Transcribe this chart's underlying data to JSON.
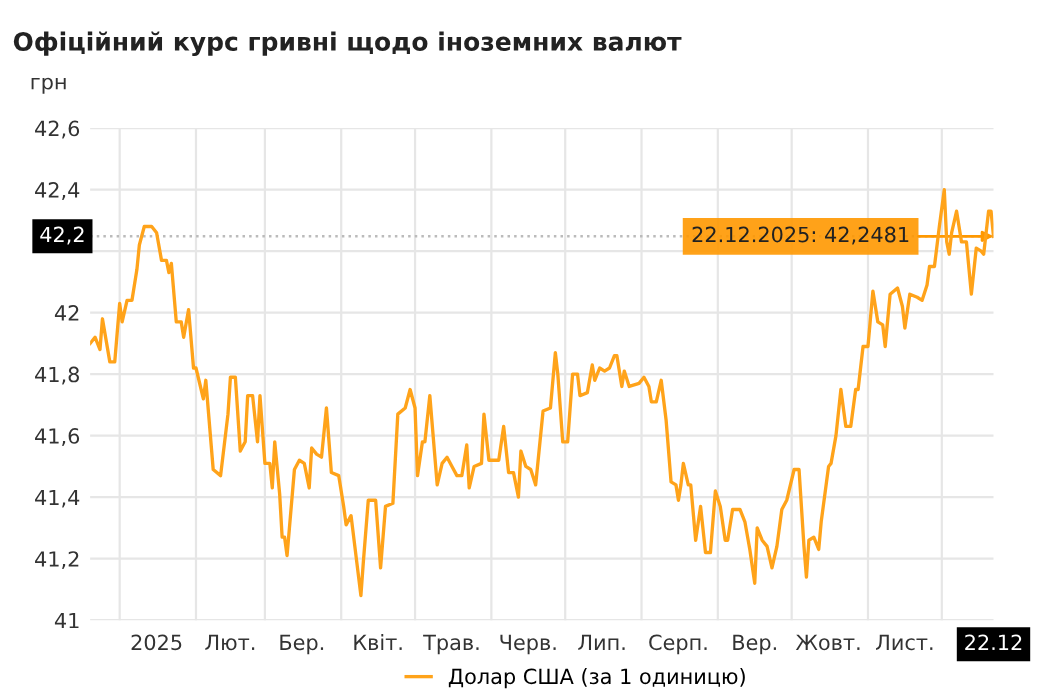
{
  "chart_data": {
    "type": "line",
    "title": "Офіційний курс гривні щодо іноземних валют",
    "ylabel": "грн",
    "x": [
      "2024-12-20",
      "2024-12-22",
      "2024-12-24",
      "2024-12-25",
      "2024-12-28",
      "2024-12-30",
      "2025-01-01",
      "2025-01-02",
      "2025-01-04",
      "2025-01-06",
      "2025-01-08",
      "2025-01-09",
      "2025-01-11",
      "2025-01-14",
      "2025-01-16",
      "2025-01-18",
      "2025-01-20",
      "2025-01-21",
      "2025-01-22",
      "2025-01-24",
      "2025-01-26",
      "2025-01-27",
      "2025-01-29",
      "2025-01-31",
      "2025-02-01",
      "2025-02-04",
      "2025-02-05",
      "2025-02-08",
      "2025-02-11",
      "2025-02-14",
      "2025-02-15",
      "2025-02-17",
      "2025-02-19",
      "2025-02-21",
      "2025-02-22",
      "2025-02-24",
      "2025-02-26",
      "2025-02-27",
      "2025-03-01",
      "2025-03-03",
      "2025-03-04",
      "2025-03-05",
      "2025-03-07",
      "2025-03-08",
      "2025-03-09",
      "2025-03-10",
      "2025-03-13",
      "2025-03-15",
      "2025-03-17",
      "2025-03-19",
      "2025-03-20",
      "2025-03-22",
      "2025-03-24",
      "2025-03-26",
      "2025-03-28",
      "2025-03-31",
      "2025-04-02",
      "2025-04-03",
      "2025-04-05",
      "2025-04-09",
      "2025-04-10",
      "2025-04-12",
      "2025-04-15",
      "2025-04-17",
      "2025-04-19",
      "2025-04-22",
      "2025-04-24",
      "2025-04-27",
      "2025-04-29",
      "2025-05-01",
      "2025-05-02",
      "2025-05-04",
      "2025-05-05",
      "2025-05-07",
      "2025-05-10",
      "2025-05-12",
      "2025-05-14",
      "2025-05-16",
      "2025-05-18",
      "2025-05-20",
      "2025-05-22",
      "2025-05-23",
      "2025-05-25",
      "2025-05-28",
      "2025-05-29",
      "2025-05-31",
      "2025-06-04",
      "2025-06-06",
      "2025-06-08",
      "2025-06-10",
      "2025-06-12",
      "2025-06-13",
      "2025-06-15",
      "2025-06-17",
      "2025-06-19",
      "2025-06-20",
      "2025-06-22",
      "2025-06-25",
      "2025-06-27",
      "2025-06-28",
      "2025-06-30",
      "2025-07-02",
      "2025-07-04",
      "2025-07-06",
      "2025-07-07",
      "2025-07-10",
      "2025-07-12",
      "2025-07-13",
      "2025-07-15",
      "2025-07-17",
      "2025-07-19",
      "2025-07-21",
      "2025-07-22",
      "2025-07-24",
      "2025-07-25",
      "2025-07-27",
      "2025-07-31",
      "2025-08-02",
      "2025-08-04",
      "2025-08-05",
      "2025-08-07",
      "2025-08-09",
      "2025-08-11",
      "2025-08-13",
      "2025-08-15",
      "2025-08-16",
      "2025-08-17",
      "2025-08-18",
      "2025-08-20",
      "2025-08-21",
      "2025-08-23",
      "2025-08-25",
      "2025-08-27",
      "2025-08-29",
      "2025-08-31",
      "2025-09-02",
      "2025-09-04",
      "2025-09-05",
      "2025-09-07",
      "2025-09-10",
      "2025-09-12",
      "2025-09-14",
      "2025-09-16",
      "2025-09-17",
      "2025-09-19",
      "2025-09-21",
      "2025-09-23",
      "2025-09-25",
      "2025-09-27",
      "2025-09-29",
      "2025-10-02",
      "2025-10-04",
      "2025-10-06",
      "2025-10-07",
      "2025-10-08",
      "2025-10-10",
      "2025-10-12",
      "2025-10-13",
      "2025-10-16",
      "2025-10-17",
      "2025-10-19",
      "2025-10-21",
      "2025-10-23",
      "2025-10-25",
      "2025-10-27",
      "2025-10-28",
      "2025-10-30",
      "2025-11-01",
      "2025-11-03",
      "2025-11-05",
      "2025-11-07",
      "2025-11-08",
      "2025-11-10",
      "2025-11-13",
      "2025-11-15",
      "2025-11-16",
      "2025-11-18",
      "2025-11-21",
      "2025-11-23",
      "2025-11-25",
      "2025-11-26",
      "2025-11-28",
      "2025-11-30",
      "2025-12-02",
      "2025-12-03",
      "2025-12-04",
      "2025-12-05",
      "2025-12-07",
      "2025-12-09",
      "2025-12-11",
      "2025-12-13",
      "2025-12-15",
      "2025-12-17",
      "2025-12-18",
      "2025-12-20",
      "2025-12-21",
      "2025-12-22"
    ],
    "series": [
      {
        "name": "Долар США (за 1 одиницю)",
        "color": "#ffa31a",
        "values": [
          41.9,
          41.92,
          41.88,
          41.98,
          41.84,
          41.84,
          42.03,
          41.97,
          42.04,
          42.04,
          42.14,
          42.22,
          42.28,
          42.28,
          42.26,
          42.17,
          42.17,
          42.13,
          42.16,
          41.97,
          41.97,
          41.92,
          42.01,
          41.82,
          41.82,
          41.72,
          41.78,
          41.49,
          41.47,
          41.67,
          41.79,
          41.79,
          41.55,
          41.58,
          41.73,
          41.73,
          41.58,
          41.73,
          41.51,
          41.51,
          41.43,
          41.58,
          41.41,
          41.27,
          41.27,
          41.21,
          41.49,
          41.52,
          41.51,
          41.43,
          41.56,
          41.54,
          41.53,
          41.69,
          41.48,
          41.47,
          41.37,
          41.31,
          41.34,
          41.08,
          41.19,
          41.39,
          41.39,
          41.17,
          41.37,
          41.38,
          41.67,
          41.69,
          41.75,
          41.69,
          41.47,
          41.58,
          41.58,
          41.73,
          41.44,
          41.51,
          41.53,
          41.5,
          41.47,
          41.47,
          41.57,
          41.43,
          41.5,
          41.51,
          41.67,
          41.52,
          41.52,
          41.63,
          41.48,
          41.48,
          41.4,
          41.55,
          41.5,
          41.49,
          41.44,
          41.52,
          41.68,
          41.69,
          41.87,
          41.8,
          41.58,
          41.58,
          41.8,
          41.8,
          41.73,
          41.74,
          41.83,
          41.78,
          41.82,
          41.81,
          41.82,
          41.86,
          41.86,
          41.76,
          41.81,
          41.76,
          41.77,
          41.79,
          41.76,
          41.71,
          41.71,
          41.78,
          41.65,
          41.45,
          41.44,
          41.39,
          41.44,
          41.51,
          41.44,
          41.44,
          41.26,
          41.37,
          41.22,
          41.22,
          41.42,
          41.37,
          41.26,
          41.26,
          41.36,
          41.36,
          41.32,
          41.23,
          41.12,
          41.3,
          41.26,
          41.24,
          41.17,
          41.24,
          41.36,
          41.39,
          41.49,
          41.49,
          41.24,
          41.14,
          41.26,
          41.27,
          41.23,
          41.32,
          41.5,
          41.51,
          41.6,
          41.75,
          41.63,
          41.63,
          41.75,
          41.75,
          41.89,
          41.89,
          42.07,
          41.97,
          41.96,
          41.89,
          42.06,
          42.08,
          42.02,
          41.95,
          42.06,
          42.05,
          42.04,
          42.09,
          42.15,
          42.15,
          42.28,
          42.4,
          42.23,
          42.19,
          42.26,
          42.33,
          42.23,
          42.23,
          42.06,
          42.21,
          42.2,
          42.19,
          42.33,
          42.33,
          42.2481
        ]
      }
    ],
    "xlim": [
      "2024-12-20",
      "2025-12-22"
    ],
    "xticks": [
      {
        "value": "2025-01-01",
        "label": null
      },
      {
        "value": "2025-01-16",
        "label": "2025"
      },
      {
        "value": "2025-02-01",
        "label": null
      },
      {
        "value": "2025-02-15",
        "label": "Лют."
      },
      {
        "value": "2025-03-01",
        "label": null
      },
      {
        "value": "2025-03-16",
        "label": "Бер."
      },
      {
        "value": "2025-04-01",
        "label": null
      },
      {
        "value": "2025-04-16",
        "label": "Квіт."
      },
      {
        "value": "2025-05-01",
        "label": null
      },
      {
        "value": "2025-05-16",
        "label": "Трав."
      },
      {
        "value": "2025-06-01",
        "label": null
      },
      {
        "value": "2025-06-16",
        "label": "Черв."
      },
      {
        "value": "2025-07-01",
        "label": null
      },
      {
        "value": "2025-07-16",
        "label": "Лип."
      },
      {
        "value": "2025-08-01",
        "label": null
      },
      {
        "value": "2025-08-16",
        "label": "Серп."
      },
      {
        "value": "2025-09-01",
        "label": null
      },
      {
        "value": "2025-09-16",
        "label": "Вер."
      },
      {
        "value": "2025-10-01",
        "label": null
      },
      {
        "value": "2025-10-16",
        "label": "Жовт."
      },
      {
        "value": "2025-11-01",
        "label": null
      },
      {
        "value": "2025-11-16",
        "label": "Лист."
      },
      {
        "value": "2025-12-01",
        "label": null
      },
      {
        "value": "2025-12-22",
        "label": "22.12"
      }
    ],
    "ylim": [
      41,
      42.6
    ],
    "yticks": [
      41,
      {
        "value": 41.2,
        "label": "41,2"
      },
      {
        "value": 41.4,
        "label": "41,4"
      },
      {
        "value": 41.6,
        "label": "41,6"
      },
      {
        "value": 41.8,
        "label": "41,8"
      },
      42,
      {
        "value": 42.2,
        "label": null
      },
      {
        "value": 42.4,
        "label": "42,4"
      },
      {
        "value": 42.6,
        "label": "42,6"
      }
    ],
    "ref_lines": [
      {
        "axis": "y",
        "value": 42.2481,
        "label": "42,2",
        "line_style": "dotted",
        "color": "#bbbbbb"
      }
    ],
    "annotations": [
      {
        "text": "22.12.2025: 42,2481",
        "x": "2025-12-22",
        "y": 42.2481
      }
    ],
    "grid": true,
    "legend": "bottom",
    "marker": "none",
    "line_style": "solid"
  }
}
